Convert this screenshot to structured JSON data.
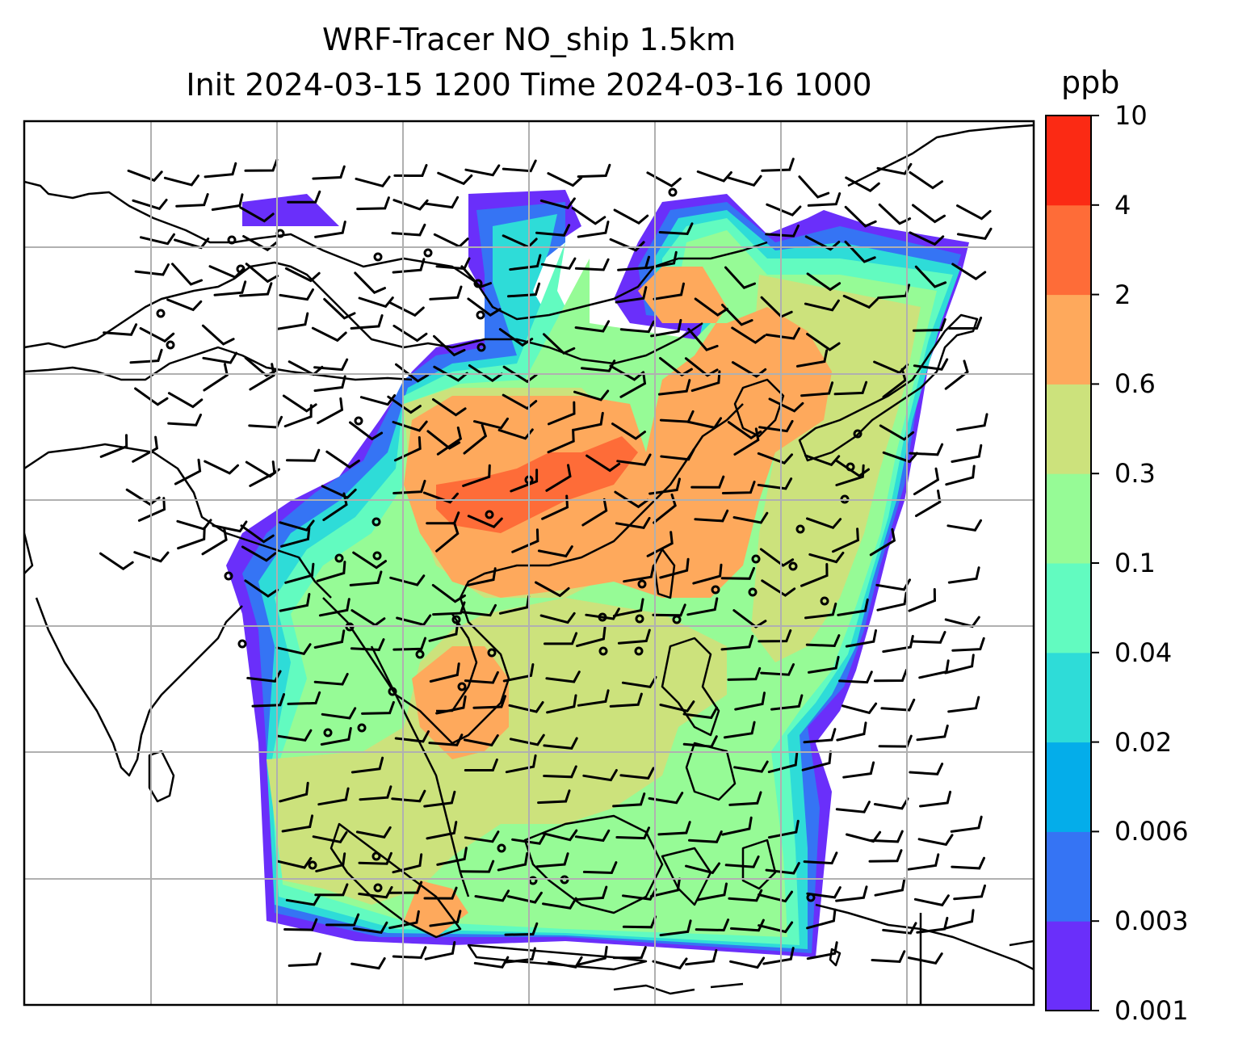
{
  "title_line1": "WRF-Tracer NO_ship 1.5km",
  "title_line2": "Init 2024-03-15 1200 Time 2024-03-16 1000",
  "colorbar": {
    "unit": "ppb",
    "levels": [
      "0.001",
      "0.003",
      "0.006",
      "0.02",
      "0.04",
      "0.1",
      "0.3",
      "0.6",
      "2",
      "4",
      "10"
    ],
    "colors": [
      "#6a2ffa",
      "#3574f4",
      "#04adea",
      "#2edcd8",
      "#62fbc0",
      "#96fb96",
      "#cce27c",
      "#fea95c",
      "#fe6c38",
      "#fb2a14"
    ]
  },
  "map": {
    "gridlines": true,
    "grid_color": "#b0b0b0",
    "coastline_color": "#000000",
    "field": "NO_ship tracer concentration",
    "overlay": "wind barbs"
  }
}
